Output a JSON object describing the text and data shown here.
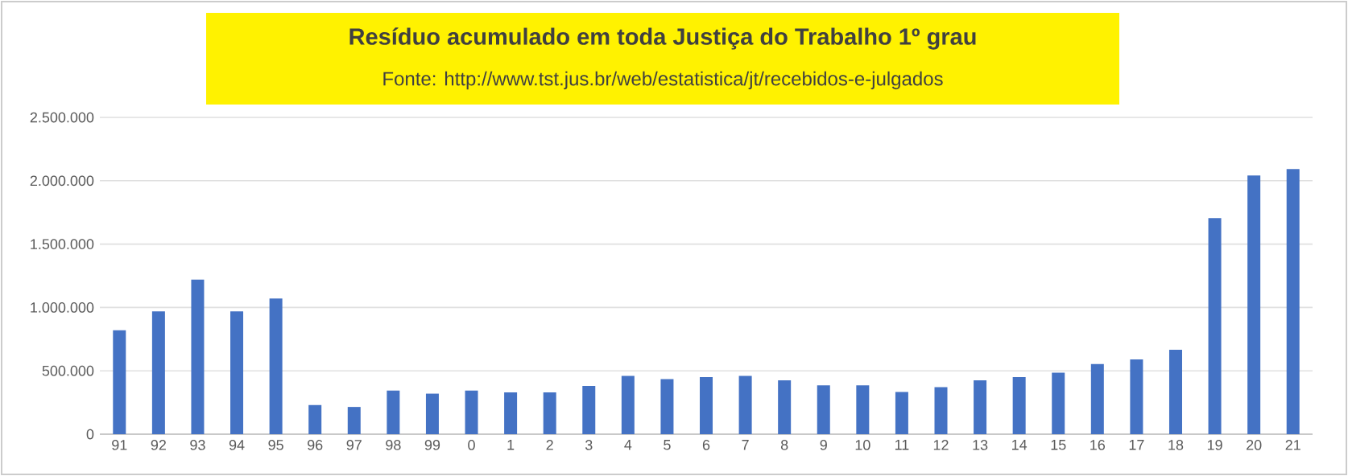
{
  "chart_data": {
    "type": "bar",
    "title": "Resíduo acumulado em toda Justiça do Trabalho 1º grau",
    "subtitle": "Fonte: http://www.tst.jus.br/web/estatistica/jt/recebidos-e-julgados",
    "categories": [
      "91",
      "92",
      "93",
      "94",
      "95",
      "96",
      "97",
      "98",
      "99",
      "0",
      "1",
      "2",
      "3",
      "4",
      "5",
      "6",
      "7",
      "8",
      "9",
      "10",
      "11",
      "12",
      "13",
      "14",
      "15",
      "16",
      "17",
      "18",
      "19",
      "20",
      "21"
    ],
    "values": [
      820000,
      970000,
      1220000,
      970000,
      1070000,
      230000,
      215000,
      345000,
      320000,
      345000,
      330000,
      330000,
      380000,
      460000,
      435000,
      450000,
      460000,
      425000,
      385000,
      385000,
      333000,
      371000,
      425000,
      450000,
      485000,
      553000,
      590000,
      667000,
      1705000,
      2042000,
      2093000
    ],
    "color": "#4472c4",
    "ylim": [
      0,
      2500000
    ],
    "yticks": [
      {
        "value": 0,
        "label": "0"
      },
      {
        "value": 500000,
        "label": "500.000"
      },
      {
        "value": 1000000,
        "label": "1.000.000"
      },
      {
        "value": 1500000,
        "label": "1.500.000"
      },
      {
        "value": 2000000,
        "label": "2.000.000"
      },
      {
        "value": 2500000,
        "label": "2.500.000"
      }
    ],
    "grid": "y"
  }
}
